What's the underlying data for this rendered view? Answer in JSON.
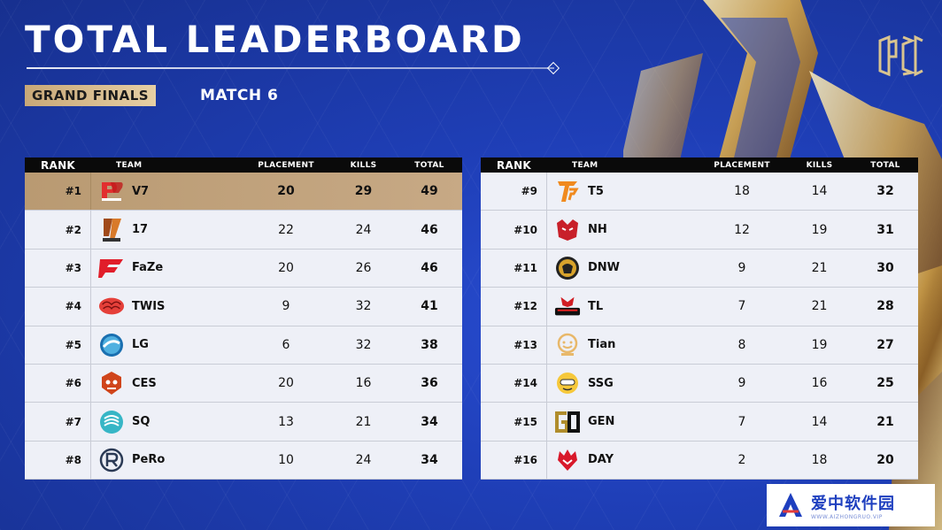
{
  "header": {
    "title": "TOTAL LEADERBOARD",
    "stage": "GRAND FINALS",
    "match": "MATCH 6"
  },
  "columns": {
    "rank": "RANK",
    "team": "TEAM",
    "placement": "PLACEMENT",
    "kills": "KILLS",
    "total": "TOTAL"
  },
  "colors": {
    "background": "#1f3fb8",
    "highlight": "#c1a27c",
    "row": "#eef0f7",
    "header": "#0a0a0a"
  },
  "left_board": [
    {
      "rank": "#1",
      "team": "V7",
      "placement": "20",
      "kills": "29",
      "total": "49",
      "icon": "v7-logo"
    },
    {
      "rank": "#2",
      "team": "17",
      "placement": "22",
      "kills": "24",
      "total": "46",
      "icon": "17-gaming-logo"
    },
    {
      "rank": "#3",
      "team": "FaZe",
      "placement": "20",
      "kills": "26",
      "total": "46",
      "icon": "faze-logo"
    },
    {
      "rank": "#4",
      "team": "TWIS",
      "placement": "9",
      "kills": "32",
      "total": "41",
      "icon": "twis-logo"
    },
    {
      "rank": "#5",
      "team": "LG",
      "placement": "6",
      "kills": "32",
      "total": "38",
      "icon": "lg-logo"
    },
    {
      "rank": "#6",
      "team": "CES",
      "placement": "20",
      "kills": "16",
      "total": "36",
      "icon": "ces-logo"
    },
    {
      "rank": "#7",
      "team": "SQ",
      "placement": "13",
      "kills": "21",
      "total": "34",
      "icon": "sq-logo"
    },
    {
      "rank": "#8",
      "team": "PeRo",
      "placement": "10",
      "kills": "24",
      "total": "34",
      "icon": "pero-logo"
    }
  ],
  "right_board": [
    {
      "rank": "#9",
      "team": "T5",
      "placement": "18",
      "kills": "14",
      "total": "32",
      "icon": "t5-logo"
    },
    {
      "rank": "#10",
      "team": "NH",
      "placement": "12",
      "kills": "19",
      "total": "31",
      "icon": "nh-logo"
    },
    {
      "rank": "#11",
      "team": "DNW",
      "placement": "9",
      "kills": "21",
      "total": "30",
      "icon": "dnw-logo"
    },
    {
      "rank": "#12",
      "team": "TL",
      "placement": "7",
      "kills": "21",
      "total": "28",
      "icon": "tyloo-logo"
    },
    {
      "rank": "#13",
      "team": "Tian",
      "placement": "8",
      "kills": "19",
      "total": "27",
      "icon": "tian-logo"
    },
    {
      "rank": "#14",
      "team": "SSG",
      "placement": "9",
      "kills": "16",
      "total": "25",
      "icon": "ssg-logo"
    },
    {
      "rank": "#15",
      "team": "GEN",
      "placement": "7",
      "kills": "14",
      "total": "21",
      "icon": "gen-logo"
    },
    {
      "rank": "#16",
      "team": "DAY",
      "placement": "2",
      "kills": "18",
      "total": "20",
      "icon": "day-logo"
    }
  ],
  "watermark": {
    "name": "爱中软件园",
    "url": "WWW.AIZHONGRUO.VIP"
  }
}
